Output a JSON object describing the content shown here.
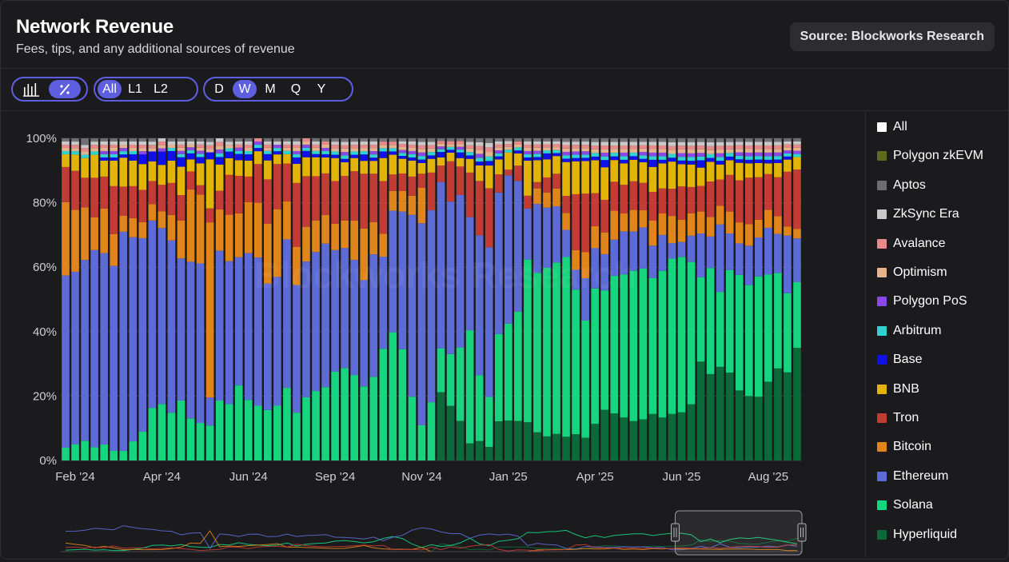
{
  "header": {
    "title": "Network Revenue",
    "subtitle": "Fees, tips, and any additional sources of revenue",
    "source": "Source: Blockworks Research"
  },
  "controls": {
    "chart_modes": [
      {
        "icon": "bar-chart-icon",
        "active": false
      },
      {
        "icon": "percent-icon",
        "active": true
      }
    ],
    "layers": [
      {
        "label": "All",
        "active": true
      },
      {
        "label": "L1",
        "active": false
      },
      {
        "label": "L2",
        "active": false
      }
    ],
    "periods": [
      {
        "label": "D",
        "active": false
      },
      {
        "label": "W",
        "active": true
      },
      {
        "label": "M",
        "active": false
      },
      {
        "label": "Q",
        "active": false
      },
      {
        "label": "Y",
        "active": false
      }
    ]
  },
  "watermark": "Blockworks Research",
  "legend": [
    {
      "label": "All",
      "color": "#ffffff"
    },
    {
      "label": "Polygon zkEVM",
      "color": "#5e6b1e"
    },
    {
      "label": "Aptos",
      "color": "#6f6f73"
    },
    {
      "label": "ZkSync Era",
      "color": "#c9c9c9"
    },
    {
      "label": "Avalance",
      "color": "#e88a8a"
    },
    {
      "label": "Optimism",
      "color": "#e4b48e"
    },
    {
      "label": "Polygon PoS",
      "color": "#8a48e6"
    },
    {
      "label": "Arbitrum",
      "color": "#2fd3d1"
    },
    {
      "label": "Base",
      "color": "#1010e8"
    },
    {
      "label": "BNB",
      "color": "#e2b409"
    },
    {
      "label": "Tron",
      "color": "#c23b35"
    },
    {
      "label": "Bitcoin",
      "color": "#e0851b"
    },
    {
      "label": "Ethereum",
      "color": "#5d6bd6"
    },
    {
      "label": "Solana",
      "color": "#17d47f"
    },
    {
      "label": "Hyperliquid",
      "color": "#0c6a3a"
    }
  ],
  "chart_data": {
    "type": "bar",
    "stacked": "percent",
    "ylim": [
      0,
      100
    ],
    "y_ticks": [
      "0%",
      "20%",
      "40%",
      "60%",
      "80%",
      "100%"
    ],
    "x_ticks": [
      "Feb '24",
      "Apr '24",
      "Jun '24",
      "Sep '24",
      "Nov '24",
      "Jan '25",
      "Apr '25",
      "Jun '25",
      "Aug '25"
    ],
    "x_tick_index": [
      1,
      10,
      19,
      28,
      37,
      46,
      55,
      64,
      73
    ],
    "bar_count": 77,
    "grid": true,
    "legend_position": "right",
    "series": [
      {
        "name": "Hyperliquid",
        "color": "#0c6a3a",
        "values": [
          0,
          0,
          0,
          0,
          0,
          0,
          0,
          0,
          0,
          0,
          0,
          0,
          0,
          0,
          0,
          0,
          0,
          0,
          0,
          0,
          0,
          0,
          0,
          0,
          0,
          0,
          0,
          0,
          0,
          0,
          0,
          0,
          0,
          0,
          0,
          0,
          0,
          0,
          0,
          25,
          19,
          14,
          5,
          5,
          3,
          13,
          14,
          13,
          12,
          9,
          8,
          9,
          7,
          8,
          7,
          10,
          14,
          13,
          12,
          11,
          12,
          13,
          12,
          12,
          13,
          15,
          27,
          22,
          25,
          24,
          20,
          18,
          18,
          22,
          26,
          29,
          36
        ]
      },
      {
        "name": "Solana",
        "color": "#17d47f",
        "values": [
          4,
          5,
          6,
          4,
          5,
          3,
          3,
          6,
          9,
          16,
          17,
          15,
          19,
          14,
          12,
          10,
          16,
          17,
          24,
          19,
          17,
          16,
          17,
          23,
          15,
          20,
          22,
          23,
          27,
          27,
          26,
          23,
          26,
          34,
          39,
          38,
          20,
          10,
          17,
          16,
          18,
          26,
          33,
          17,
          11,
          29,
          34,
          36,
          51,
          51,
          56,
          58,
          53,
          44,
          36,
          37,
          33,
          38,
          40,
          42,
          44,
          38,
          41,
          40,
          42,
          38,
          23,
          27,
          20,
          28,
          33,
          31,
          34,
          30,
          27,
          26,
          21
        ]
      },
      {
        "name": "Ethereum",
        "color": "#5d6bd6",
        "values": [
          54,
          53,
          55,
          60,
          60,
          58,
          68,
          64,
          60,
          57,
          53,
          54,
          45,
          52,
          51,
          8,
          40,
          43,
          41,
          46,
          46,
          40,
          40,
          47,
          40,
          43,
          44,
          45,
          37,
          35,
          35,
          33,
          38,
          28,
          37,
          47,
          57,
          57,
          56,
          61,
          53,
          54,
          33,
          36,
          33,
          47,
          52,
          43,
          16,
          22,
          20,
          19,
          8,
          6,
          13,
          11,
          10,
          10,
          12,
          11,
          12,
          9,
          10,
          4,
          4,
          7,
          12,
          8,
          18,
          10,
          9,
          11,
          11,
          13,
          11,
          19,
          14
        ]
      },
      {
        "name": "Bitcoin",
        "color": "#e0851b",
        "values": [
          23,
          19,
          16,
          10,
          14,
          10,
          5,
          6,
          5,
          5,
          5,
          8,
          12,
          24,
          22,
          50,
          11,
          14,
          14,
          16,
          17,
          19,
          21,
          12,
          12,
          11,
          10,
          9,
          8,
          8,
          12,
          16,
          10,
          7,
          6,
          7,
          6,
          10,
          0,
          0,
          0,
          0,
          0,
          0,
          0,
          0,
          0,
          0,
          0,
          5,
          5,
          6,
          5,
          6,
          8,
          6,
          6,
          8,
          5,
          6,
          5,
          7,
          6,
          7,
          6,
          6,
          6,
          5,
          5,
          6,
          6,
          6,
          5,
          5,
          5,
          3,
          3
        ]
      },
      {
        "name": "Tron",
        "color": "#c23b35",
        "values": [
          11,
          12,
          9,
          12,
          10,
          15,
          9,
          10,
          10,
          7,
          8,
          10,
          8,
          6,
          3,
          4,
          5,
          12,
          12,
          8,
          12,
          14,
          14,
          12,
          20,
          16,
          14,
          13,
          13,
          13,
          15,
          17,
          15,
          16,
          5,
          6,
          6,
          4,
          11,
          6,
          14,
          10,
          13,
          14,
          13,
          6,
          2,
          5,
          4,
          2,
          5,
          5,
          5,
          17,
          18,
          9,
          9,
          8,
          8,
          8,
          8,
          8,
          7,
          7,
          9,
          7,
          7,
          9,
          7,
          10,
          12,
          13,
          12,
          10,
          11,
          18,
          19
        ]
      },
      {
        "name": "BNB",
        "color": "#e2b409",
        "values": [
          4,
          5,
          6,
          7,
          5,
          8,
          9,
          8,
          8,
          6,
          6,
          7,
          9,
          4,
          7,
          14,
          7,
          5,
          5,
          5,
          4,
          6,
          3,
          3,
          6,
          6,
          6,
          5,
          7,
          4,
          4,
          4,
          4,
          7,
          6,
          5,
          5,
          3,
          4,
          3,
          3,
          3,
          4,
          4,
          5,
          5,
          6,
          4,
          11,
          7,
          6,
          6,
          10,
          10,
          10,
          9,
          9,
          6,
          6,
          6,
          6,
          7,
          7,
          7,
          6,
          6,
          5,
          5,
          4,
          4,
          5,
          4,
          4,
          3,
          4,
          4,
          4
        ]
      },
      {
        "name": "Base",
        "color": "#1010e8",
        "values": [
          0,
          0,
          0,
          0,
          1,
          1,
          1,
          2,
          3,
          3,
          4,
          3,
          3,
          2,
          2,
          2,
          2,
          2,
          2,
          2,
          1,
          2,
          1,
          0,
          2,
          2,
          1,
          1,
          1,
          1,
          1,
          2,
          1,
          2,
          1,
          1,
          1,
          1,
          1,
          2,
          1,
          2,
          1,
          1,
          1,
          1,
          0,
          1,
          1,
          1,
          2,
          1,
          1,
          1,
          1,
          1,
          2,
          1,
          1,
          1,
          1,
          2,
          1,
          1,
          1,
          1,
          2,
          1,
          1,
          1,
          1,
          1,
          1,
          1,
          1,
          1,
          0
        ]
      },
      {
        "name": "Arbitrum",
        "color": "#2fd3d1",
        "values": [
          1,
          1,
          1,
          1,
          1,
          1,
          1,
          1,
          0,
          0,
          0,
          1,
          1,
          1,
          1,
          0,
          1,
          1,
          1,
          1,
          1,
          1,
          1,
          1,
          1,
          1,
          1,
          1,
          1,
          1,
          1,
          1,
          1,
          1,
          1,
          1,
          1,
          1,
          1,
          1,
          1,
          1,
          1,
          1,
          1,
          1,
          1,
          1,
          1,
          1,
          1,
          1,
          1,
          1,
          1,
          1,
          1,
          1,
          1,
          1,
          1,
          1,
          1,
          1,
          1,
          1,
          1,
          1,
          1,
          1,
          1,
          1,
          1,
          1,
          1,
          1,
          1
        ]
      },
      {
        "name": "Polygon PoS",
        "color": "#8a48e6",
        "values": [
          0,
          0,
          0,
          0,
          1,
          1,
          1,
          0,
          1,
          0,
          1,
          0,
          1,
          1,
          1,
          0,
          1,
          0,
          1,
          0,
          1,
          0,
          1,
          0,
          1,
          1,
          0,
          1,
          0,
          1,
          0,
          0,
          1,
          0,
          0,
          1,
          1,
          1,
          0,
          1,
          0,
          1,
          0,
          1,
          0,
          1,
          0,
          0,
          1,
          1,
          0,
          0,
          1,
          1,
          1,
          0,
          1,
          0,
          1,
          0,
          1,
          1,
          1,
          0,
          1,
          1,
          1,
          0,
          1,
          0,
          1,
          1,
          1,
          1,
          1,
          1,
          1
        ]
      },
      {
        "name": "Optimism",
        "color": "#e4b48e",
        "values": [
          1,
          1,
          1,
          1,
          1,
          1,
          1,
          1,
          1,
          1,
          1,
          1,
          1,
          1,
          1,
          1,
          1,
          1,
          0,
          1,
          0,
          1,
          0,
          1,
          1,
          1,
          1,
          1,
          1,
          1,
          1,
          1,
          1,
          1,
          1,
          1,
          1,
          1,
          1,
          1,
          1,
          1,
          1,
          1,
          1,
          1,
          1,
          1,
          1,
          1,
          1,
          1,
          1,
          1,
          1,
          1,
          1,
          1,
          1,
          1,
          1,
          1,
          1,
          1,
          1,
          1,
          1,
          1,
          1,
          1,
          1,
          1,
          1,
          1,
          1,
          1,
          1
        ]
      },
      {
        "name": "Avalance",
        "color": "#e88a8a",
        "values": [
          1,
          1,
          1,
          1,
          1,
          1,
          0,
          1,
          1,
          1,
          1,
          0,
          1,
          0,
          1,
          1,
          1,
          0,
          1,
          1,
          1,
          1,
          0,
          1,
          1,
          1,
          1,
          1,
          1,
          1,
          1,
          1,
          1,
          1,
          1,
          1,
          1,
          1,
          1,
          1,
          1,
          1,
          1,
          1,
          1,
          1,
          1,
          1,
          1,
          1,
          1,
          1,
          1,
          1,
          1,
          1,
          1,
          1,
          1,
          1,
          1,
          1,
          1,
          1,
          1,
          1,
          1,
          1,
          1,
          1,
          1,
          1,
          1,
          1,
          1,
          1,
          1
        ]
      },
      {
        "name": "ZkSync Era",
        "color": "#c9c9c9",
        "values": [
          1,
          1,
          1,
          1,
          1,
          1,
          1,
          1,
          1,
          1,
          1,
          1,
          1,
          1,
          1,
          1,
          1,
          1,
          1,
          1,
          0,
          1,
          1,
          1,
          1,
          0,
          1,
          0,
          1,
          1,
          1,
          1,
          1,
          0,
          0,
          1,
          1,
          1,
          1,
          0,
          0,
          0,
          1,
          1,
          1,
          1,
          1,
          0,
          1,
          1,
          1,
          1,
          1,
          1,
          1,
          1,
          1,
          1,
          1,
          1,
          1,
          1,
          1,
          1,
          1,
          1,
          1,
          1,
          1,
          1,
          1,
          1,
          1,
          1,
          1,
          1,
          1
        ]
      },
      {
        "name": "Aptos",
        "color": "#6f6f73",
        "values": [
          1,
          1,
          2,
          1,
          1,
          1,
          1,
          1,
          1,
          1,
          0,
          1,
          1,
          1,
          1,
          1,
          0,
          1,
          1,
          1,
          0,
          1,
          1,
          1,
          1,
          0,
          1,
          1,
          1,
          1,
          1,
          1,
          1,
          1,
          1,
          1,
          1,
          1,
          1,
          1,
          1,
          1,
          1,
          1,
          1,
          1,
          1,
          1,
          1,
          1,
          1,
          1,
          1,
          1,
          1,
          1,
          1,
          1,
          1,
          1,
          1,
          1,
          1,
          1,
          1,
          1,
          1,
          1,
          1,
          1,
          1,
          1,
          1,
          1,
          1,
          1,
          1
        ]
      },
      {
        "name": "Polygon zkEVM",
        "color": "#5e6b1e",
        "values": [
          0,
          0,
          0,
          0,
          0,
          0,
          0,
          0,
          0,
          0,
          0,
          0,
          0,
          0,
          0,
          0,
          0,
          0,
          0,
          0,
          0,
          0,
          0,
          0,
          0,
          0,
          0,
          0,
          0,
          0,
          0,
          0,
          0,
          0,
          0,
          0,
          0,
          0,
          0,
          0,
          0,
          0,
          0,
          0,
          0,
          0,
          0,
          0,
          0,
          0,
          0,
          0,
          0,
          0,
          0,
          0,
          0,
          0,
          0,
          0,
          0,
          0,
          0,
          0,
          0,
          0,
          0,
          0,
          0,
          0,
          0,
          0,
          0,
          0,
          0,
          0,
          0
        ]
      }
    ],
    "navigator": {
      "window_start_index": 64,
      "window_end_index": 76
    }
  }
}
